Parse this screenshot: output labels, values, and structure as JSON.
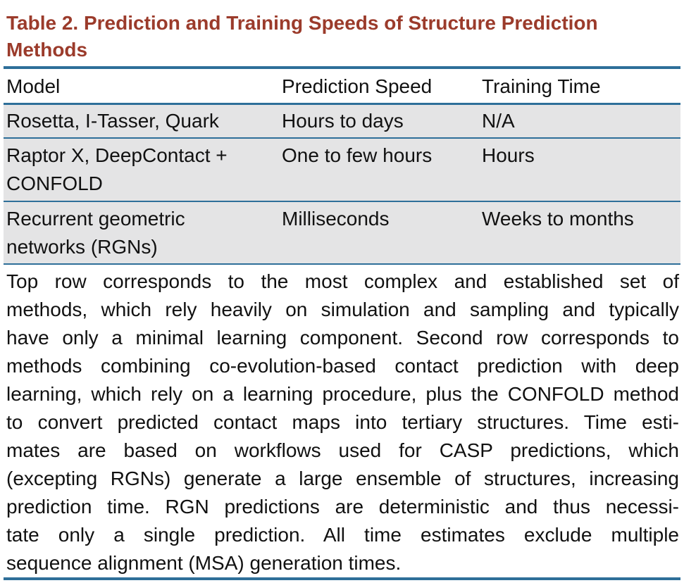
{
  "caption": {
    "line1": "Table 2.  Prediction and Training Speeds of Structure Prediction",
    "line2": "Methods"
  },
  "table": {
    "headers": [
      "Model",
      "Prediction Speed",
      "Training Time"
    ],
    "rows": [
      {
        "model": [
          "Rosetta, I-Tasser, Quark"
        ],
        "prediction_speed": "Hours to days",
        "training_time": "N/A"
      },
      {
        "model": [
          "Raptor X, DeepContact +",
          "CONFOLD"
        ],
        "prediction_speed": "One to few hours",
        "training_time": "Hours"
      },
      {
        "model": [
          "Recurrent geometric",
          "networks (RGNs)"
        ],
        "prediction_speed": "Milliseconds",
        "training_time": "Weeks to months"
      }
    ]
  },
  "footnote_lines": [
    "Top row corresponds to the most complex and established set of",
    "methods, which rely heavily on simulation and sampling and typically",
    "have only a minimal learning component. Second row corresponds to",
    "methods combining co-evolution-based contact prediction with deep",
    "learning, which rely on a learning procedure, plus the CONFOLD method",
    "to convert predicted contact maps into tertiary structures. Time esti-",
    "mates are based on workflows used for CASP predictions, which",
    "(excepting RGNs) generate a large ensemble of structures, increasing",
    "prediction time. RGN predictions are deterministic and thus necessi-",
    "tate only a single prediction. All time estimates exclude multiple",
    "sequence alignment (MSA) generation times."
  ],
  "colors": {
    "caption": "#9b3b2b",
    "rule": "#2e6f99",
    "row_shade": "#e4e4e5"
  }
}
